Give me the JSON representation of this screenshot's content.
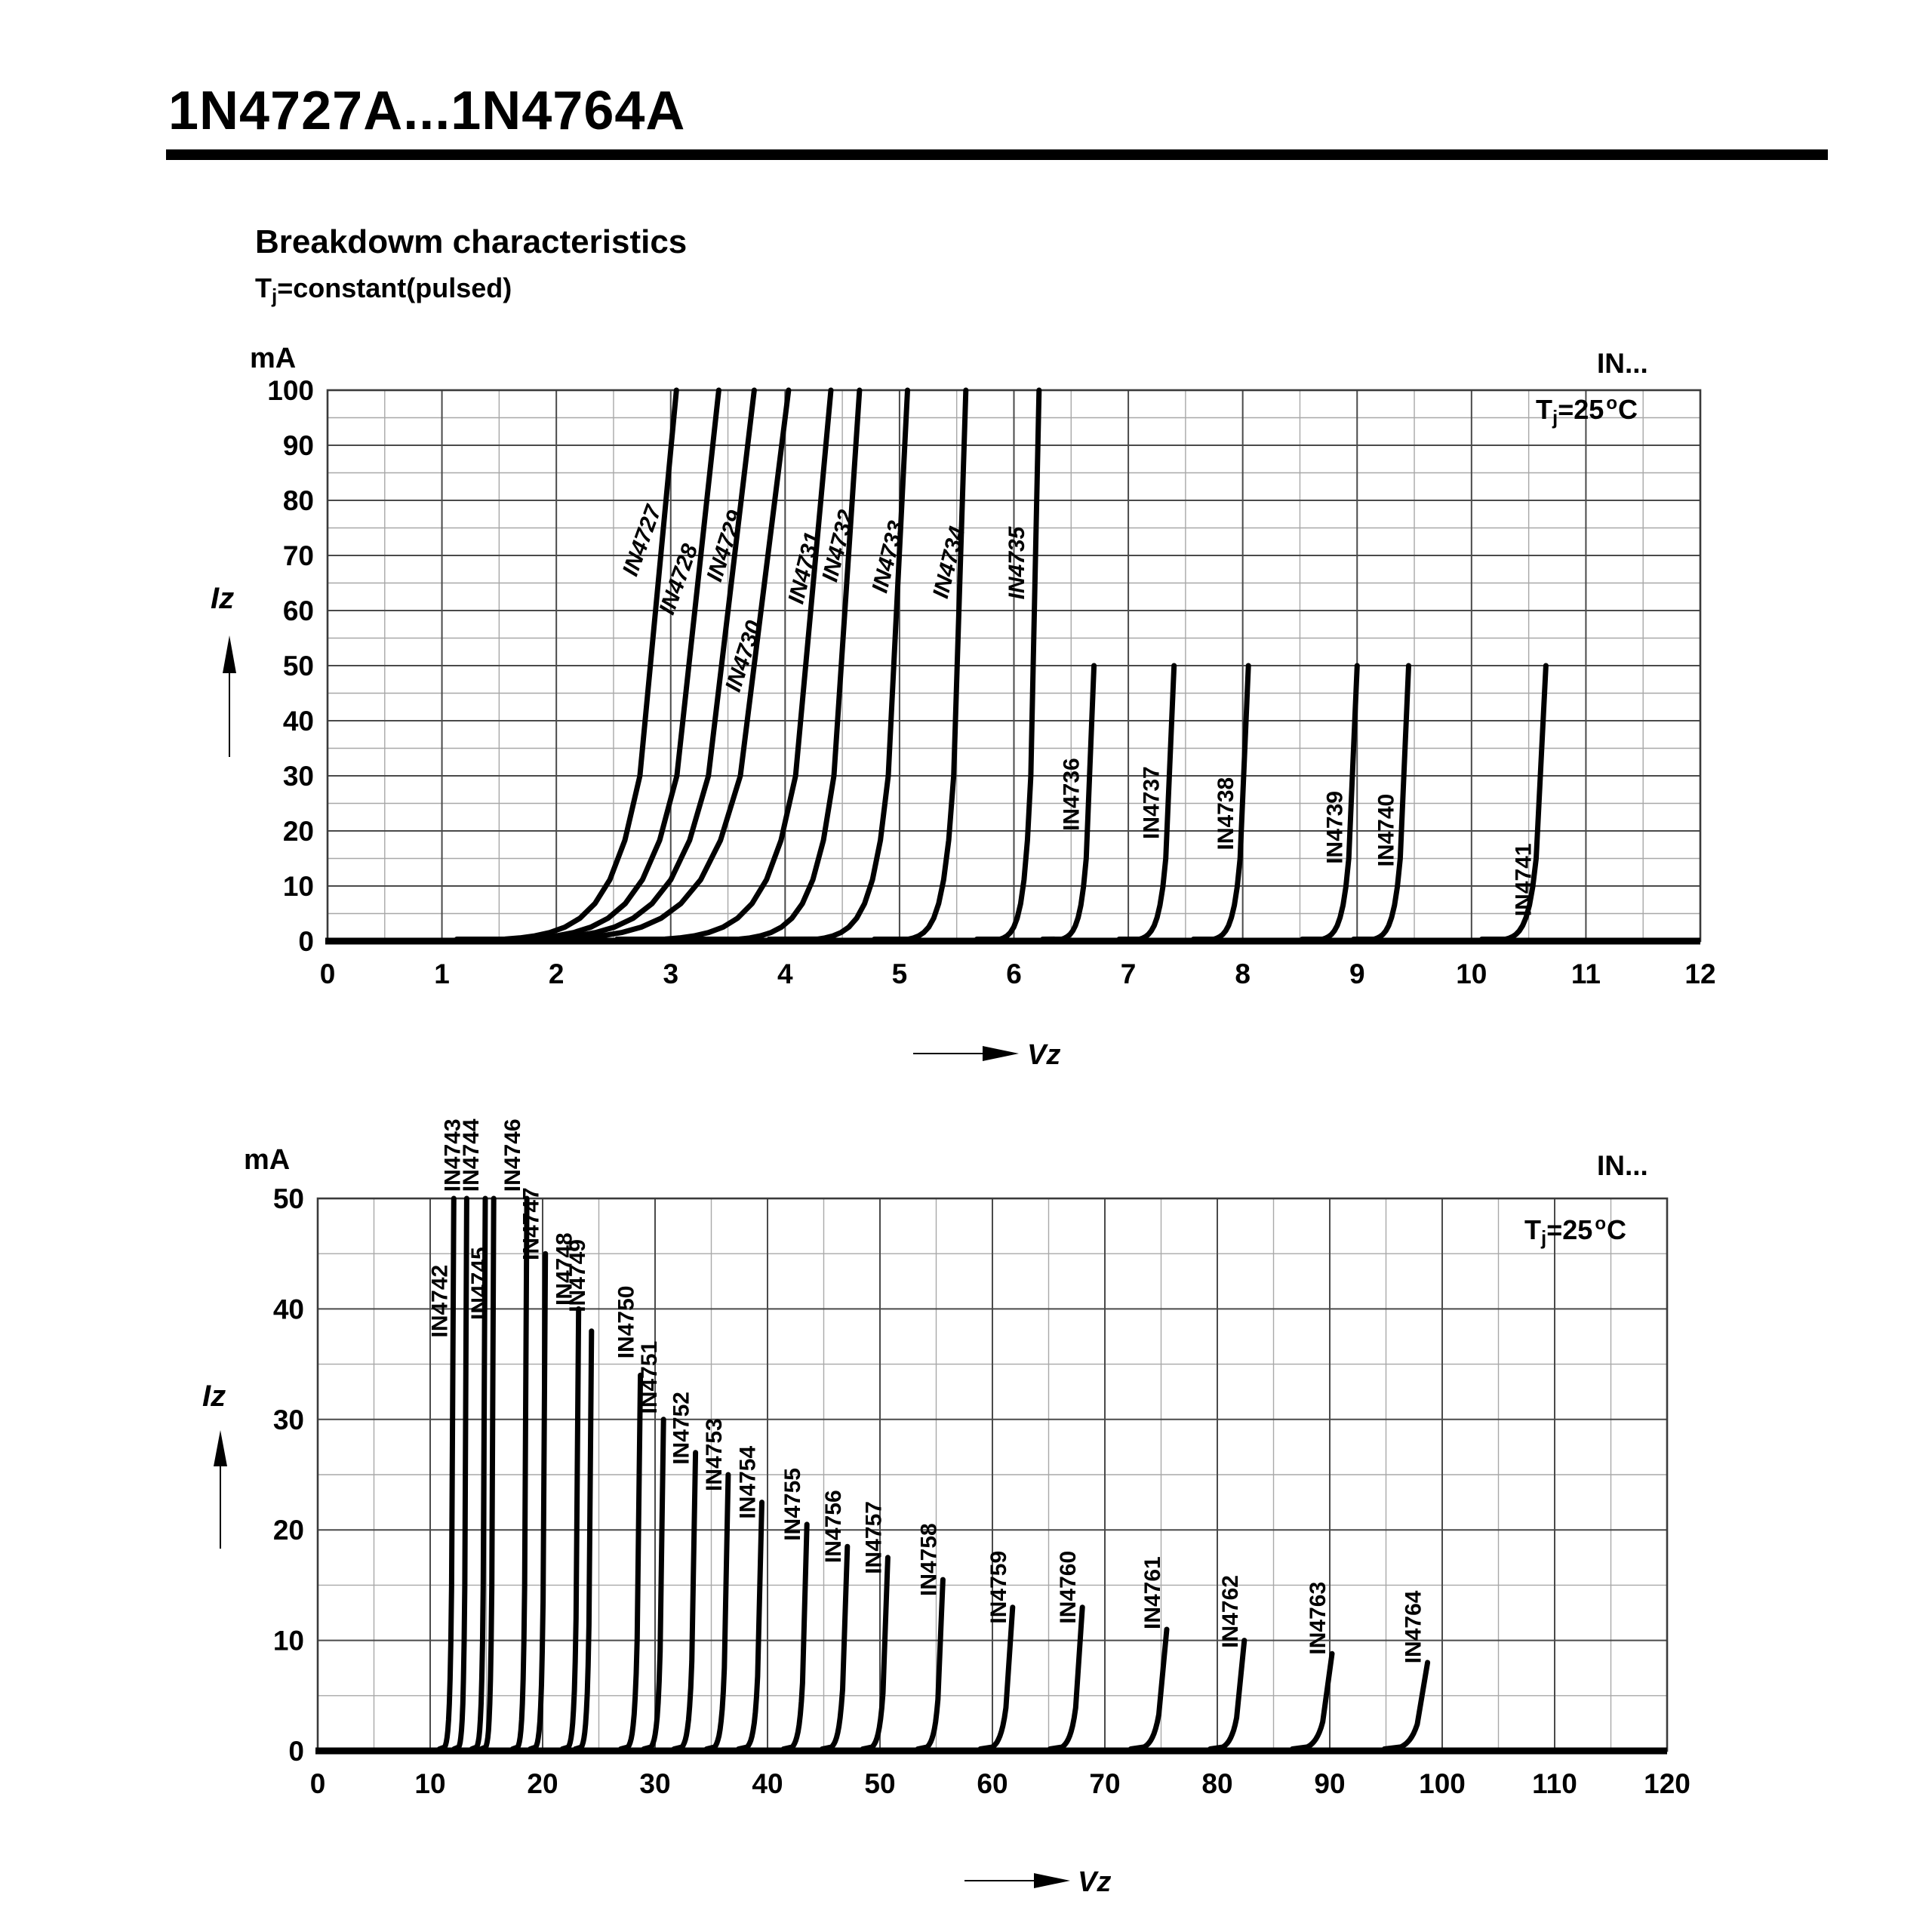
{
  "header": {
    "title": "1N4727A...1N4764A",
    "section_title": "Breakdowm characteristics",
    "condition": {
      "t": "T",
      "sub": "j",
      "rest": "=constant(pulsed)"
    }
  },
  "chart_data": [
    {
      "type": "line",
      "position": "top",
      "unit_label": "mA",
      "corner_label": "IN...",
      "temp_label": {
        "t": "T",
        "sub": "j",
        "mid": "=25",
        "sup": "o",
        "end": "C"
      },
      "xlabel": "Vz",
      "ylabel": "Iz",
      "xlim": [
        0,
        12
      ],
      "ylim": [
        0,
        100
      ],
      "x_major": 1,
      "x_minor": 0.5,
      "y_major": 10,
      "y_minor": 5,
      "x_ticks": [
        0,
        1,
        2,
        3,
        4,
        5,
        6,
        7,
        8,
        9,
        10,
        11,
        12
      ],
      "y_ticks": [
        0,
        10,
        20,
        30,
        40,
        50,
        60,
        70,
        80,
        90,
        100
      ],
      "grid": true,
      "series": [
        {
          "name": "IN4727",
          "v_knee": 1.55,
          "vz": 3.05,
          "i_max": 100,
          "label": {
            "i": 66,
            "angle": -70,
            "italic": true
          }
        },
        {
          "name": "IN4728",
          "v_knee": 1.7,
          "vz": 3.42,
          "i_max": 100,
          "label": {
            "i": 59,
            "angle": -70,
            "italic": true
          }
        },
        {
          "name": "IN4729",
          "v_knee": 1.85,
          "vz": 3.73,
          "i_max": 100,
          "label": {
            "i": 65,
            "angle": -72,
            "italic": true
          }
        },
        {
          "name": "IN4730",
          "v_knee": 2.05,
          "vz": 4.03,
          "i_max": 100,
          "label": {
            "i": 45,
            "angle": -72,
            "italic": true
          }
        },
        {
          "name": "IN4731",
          "v_knee": 2.95,
          "vz": 4.4,
          "i_max": 100,
          "label": {
            "i": 61,
            "angle": -76,
            "italic": true
          }
        },
        {
          "name": "IN4732",
          "v_knee": 3.6,
          "vz": 4.65,
          "i_max": 100,
          "label": {
            "i": 65,
            "angle": -76,
            "italic": true
          }
        },
        {
          "name": "IN4733",
          "v_knee": 4.28,
          "vz": 5.07,
          "i_max": 100,
          "label": {
            "i": 63,
            "angle": -76,
            "italic": true
          }
        },
        {
          "name": "IN4734",
          "v_knee": 5.08,
          "vz": 5.58,
          "i_max": 100,
          "label": {
            "i": 62,
            "angle": -76,
            "italic": true
          }
        },
        {
          "name": "IN4735",
          "v_knee": 5.88,
          "vz": 6.22,
          "i_max": 100,
          "label": {
            "i": 62,
            "angle": -90,
            "italic": true
          }
        },
        {
          "name": "IN4736",
          "v_knee": 6.42,
          "vz": 6.7,
          "i_max": 50,
          "label": {
            "i": 20,
            "angle": -90
          }
        },
        {
          "name": "IN4737",
          "v_knee": 7.1,
          "vz": 7.4,
          "i_max": 50,
          "label": {
            "i": 18.5,
            "angle": -90
          }
        },
        {
          "name": "IN4738",
          "v_knee": 7.75,
          "vz": 8.05,
          "i_max": 50,
          "label": {
            "i": 16.5,
            "angle": -90
          }
        },
        {
          "name": "IN4739",
          "v_knee": 8.7,
          "vz": 9.0,
          "i_max": 50,
          "label": {
            "i": 14,
            "angle": -90
          }
        },
        {
          "name": "IN4740",
          "v_knee": 9.15,
          "vz": 9.45,
          "i_max": 50,
          "label": {
            "i": 13.5,
            "angle": -90
          }
        },
        {
          "name": "IN4741",
          "v_knee": 10.3,
          "vz": 10.65,
          "i_max": 50,
          "label": {
            "i": 4.5,
            "angle": -90
          }
        }
      ]
    },
    {
      "type": "line",
      "position": "bottom",
      "unit_label": "mA",
      "corner_label": "IN...",
      "temp_label": {
        "t": "T",
        "sub": "j",
        "mid": "=25",
        "sup": "o",
        "end": "C"
      },
      "xlabel": "Vz",
      "ylabel": "Iz",
      "xlim": [
        0,
        120
      ],
      "ylim": [
        0,
        50
      ],
      "x_major": 10,
      "x_minor": 5,
      "y_major": 10,
      "y_minor": 5,
      "x_ticks": [
        0,
        10,
        20,
        30,
        40,
        50,
        60,
        70,
        80,
        90,
        100,
        110,
        120
      ],
      "y_ticks": [
        0,
        10,
        20,
        30,
        40,
        50
      ],
      "grid": true,
      "series": [
        {
          "name": "IN4742",
          "v_knee": 11.3,
          "vz": 12.1,
          "i_max": 50,
          "label": {
            "i": 37.4,
            "angle": -90
          }
        },
        {
          "name": "IN4743",
          "v_knee": 12.55,
          "vz": 13.25,
          "i_max": 50,
          "label": {
            "i": 50.6,
            "angle": -90
          }
        },
        {
          "name": "IN4744",
          "v_knee": 14.15,
          "vz": 14.9,
          "i_max": 50,
          "label": {
            "i": 50.6,
            "angle": -90
          }
        },
        {
          "name": "IN4745",
          "v_knee": 14.95,
          "vz": 15.65,
          "i_max": 50,
          "label": {
            "i": 39,
            "angle": -90
          }
        },
        {
          "name": "IN4746",
          "v_knee": 17.8,
          "vz": 18.6,
          "i_max": 50,
          "label": {
            "i": 50.6,
            "angle": -90
          }
        },
        {
          "name": "IN4747",
          "v_knee": 19.4,
          "vz": 20.25,
          "i_max": 45,
          "label": {
            "i": 44.4,
            "angle": -90
          }
        },
        {
          "name": "IN4748",
          "v_knee": 22.3,
          "vz": 23.2,
          "i_max": 40,
          "label": {
            "i": 40.3,
            "angle": -90
          }
        },
        {
          "name": "IN4749",
          "v_knee": 23.45,
          "vz": 24.35,
          "i_max": 38,
          "label": {
            "i": 39.7,
            "angle": -90
          }
        },
        {
          "name": "IN4750",
          "v_knee": 27.6,
          "vz": 28.7,
          "i_max": 34,
          "label": {
            "i": 35.5,
            "angle": -90
          }
        },
        {
          "name": "IN4751",
          "v_knee": 29.65,
          "vz": 30.75,
          "i_max": 30,
          "label": {
            "i": 30.5,
            "angle": -90
          }
        },
        {
          "name": "IN4752",
          "v_knee": 32.4,
          "vz": 33.6,
          "i_max": 27,
          "label": {
            "i": 25.9,
            "angle": -90
          }
        },
        {
          "name": "IN4753",
          "v_knee": 35.3,
          "vz": 36.5,
          "i_max": 25,
          "label": {
            "i": 23.5,
            "angle": -90
          }
        },
        {
          "name": "IN4754",
          "v_knee": 38.2,
          "vz": 39.5,
          "i_max": 22.5,
          "label": {
            "i": 21,
            "angle": -90
          }
        },
        {
          "name": "IN4755",
          "v_knee": 42.2,
          "vz": 43.5,
          "i_max": 20.5,
          "label": {
            "i": 19,
            "angle": -90
          }
        },
        {
          "name": "IN4756",
          "v_knee": 45.7,
          "vz": 47.1,
          "i_max": 18.5,
          "label": {
            "i": 17,
            "angle": -90
          }
        },
        {
          "name": "IN4757",
          "v_knee": 49.3,
          "vz": 50.7,
          "i_max": 17.5,
          "label": {
            "i": 16,
            "angle": -90
          }
        },
        {
          "name": "IN4758",
          "v_knee": 54.2,
          "vz": 55.6,
          "i_max": 15.5,
          "label": {
            "i": 14,
            "angle": -90
          }
        },
        {
          "name": "IN4759",
          "v_knee": 60.0,
          "vz": 61.8,
          "i_max": 13,
          "label": {
            "i": 11.5,
            "angle": -90
          }
        },
        {
          "name": "IN4760",
          "v_knee": 66.2,
          "vz": 68.0,
          "i_max": 13,
          "label": {
            "i": 11.5,
            "angle": -90
          }
        },
        {
          "name": "IN4761",
          "v_knee": 73.5,
          "vz": 75.5,
          "i_max": 11,
          "label": {
            "i": 11,
            "angle": -90
          }
        },
        {
          "name": "IN4762",
          "v_knee": 80.5,
          "vz": 82.4,
          "i_max": 10,
          "label": {
            "i": 9.3,
            "angle": -90
          }
        },
        {
          "name": "IN4763",
          "v_knee": 88.0,
          "vz": 90.2,
          "i_max": 8.8,
          "label": {
            "i": 8.7,
            "angle": -90
          }
        },
        {
          "name": "IN4764",
          "v_knee": 96.3,
          "vz": 98.7,
          "i_max": 8,
          "label": {
            "i": 7.9,
            "angle": -90
          }
        }
      ]
    }
  ]
}
